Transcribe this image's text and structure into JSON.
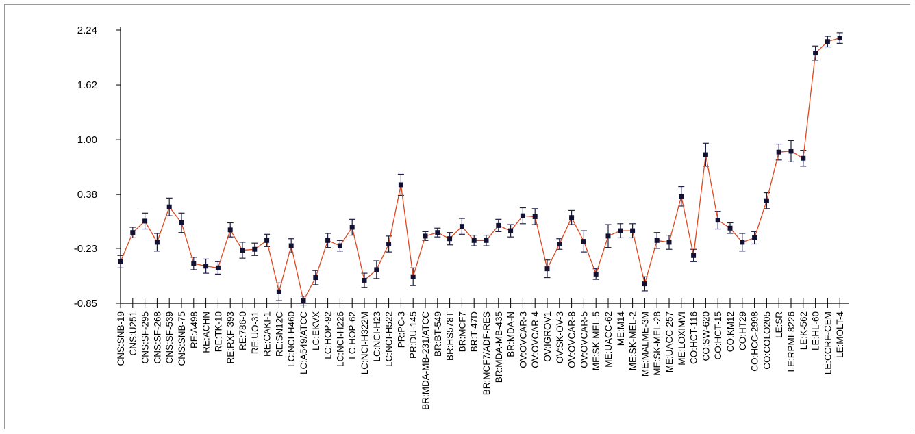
{
  "chart_data": {
    "type": "line",
    "title": "",
    "xlabel": "",
    "ylabel": "",
    "ylim": [
      -0.85,
      2.24
    ],
    "yticks": [
      "2.24",
      "1.62",
      "1.00",
      "0.38",
      "-0.23",
      "-0.85"
    ],
    "grid": false,
    "legend": "none",
    "line_color": "#e2461c",
    "marker_color": "#111133",
    "errorbar_color": "#1e1e46",
    "categories": [
      "CNS:SNB-19",
      "CNS:U251",
      "CNS:SF-295",
      "CNS:SF-268",
      "CNS:SF-539",
      "CNS:SNB-75",
      "RE:A498",
      "RE:ACHN",
      "RE:TK-10",
      "RE:RXF-393",
      "RE:786-0",
      "RE:UO-31",
      "RE:CAKI-1",
      "RE:SN12C",
      "LC:NCI-H460",
      "LC:A549/ATCC",
      "LC:EKVX",
      "LC:HOP-92",
      "LC:NCI-H226",
      "LC:HOP-62",
      "LC:NCI-H322M",
      "LC:NCI-H23",
      "LC:NCI-H522",
      "PR:PC-3",
      "PR:DU-145",
      "BR:MDA-MB-231/ATCC",
      "BR:BT-549",
      "BR:HS578T",
      "BR:MCF7",
      "BR:T-47D",
      "BR:MCF7/ADF-RES",
      "BR:MDA-MB-435",
      "BR:MDA-N",
      "OV:OVCAR-3",
      "OV:OVCAR-4",
      "OV:IGROV1",
      "OV:SK-OV-3",
      "OV:OVCAR-8",
      "OV:OVCAR-5",
      "ME:SK-MEL-5",
      "ME:UACC-62",
      "ME:M14",
      "ME:SK-MEL-2",
      "ME:MALME-3M",
      "ME:SK-MEL-28",
      "ME:UACC-257",
      "ME:LOXIMVI",
      "CO:HCT-116",
      "CO:SW-620",
      "CO:HCT-15",
      "CO:KM12",
      "CO:HT29",
      "CO:HCC-2998",
      "CO:COLO205",
      "LE:SR",
      "LE:RPMI-8226",
      "LE:K-562",
      "LE:HL-60",
      "LE:CCRF-CEM",
      "LE:MOLT-4"
    ],
    "series": [
      {
        "values": [
          -0.38,
          -0.05,
          0.08,
          -0.16,
          0.24,
          0.06,
          -0.4,
          -0.43,
          -0.45,
          -0.02,
          -0.25,
          -0.24,
          -0.14,
          -0.72,
          -0.2,
          -0.82,
          -0.56,
          -0.14,
          -0.2,
          0.01,
          -0.59,
          -0.47,
          -0.18,
          0.49,
          -0.55,
          -0.09,
          -0.05,
          -0.12,
          0.02,
          -0.14,
          -0.14,
          0.03,
          -0.03,
          0.14,
          0.13,
          -0.46,
          -0.18,
          0.12,
          -0.15,
          -0.52,
          -0.09,
          -0.03,
          -0.03,
          -0.63,
          -0.14,
          -0.16,
          0.36,
          -0.31,
          0.83,
          0.09,
          0.0,
          -0.16,
          -0.11,
          0.31,
          0.86,
          0.87,
          0.79,
          1.98,
          2.11,
          2.15
        ],
        "errors": [
          0.07,
          0.06,
          0.09,
          0.1,
          0.1,
          0.11,
          0.07,
          0.08,
          0.07,
          0.08,
          0.09,
          0.07,
          0.07,
          0.1,
          0.08,
          0.05,
          0.08,
          0.08,
          0.06,
          0.09,
          0.08,
          0.1,
          0.09,
          0.12,
          0.1,
          0.05,
          0.05,
          0.07,
          0.09,
          0.06,
          0.06,
          0.07,
          0.07,
          0.09,
          0.09,
          0.1,
          0.06,
          0.08,
          0.12,
          0.06,
          0.13,
          0.08,
          0.08,
          0.08,
          0.09,
          0.08,
          0.11,
          0.07,
          0.13,
          0.1,
          0.06,
          0.1,
          0.07,
          0.09,
          0.09,
          0.12,
          0.09,
          0.08,
          0.06,
          0.06
        ]
      }
    ]
  }
}
